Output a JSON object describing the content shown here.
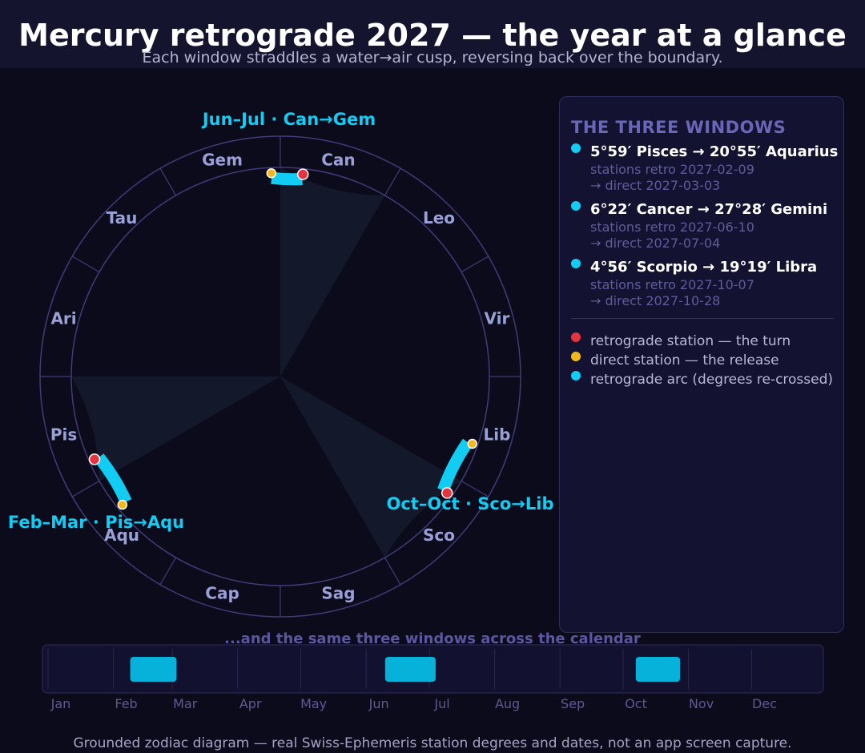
{
  "header": {
    "title": "Mercury retrograde 2027 — the year at a glance",
    "subtitle": "Each window straddles a water→air cusp, reversing back over the boundary."
  },
  "wheel": {
    "signs": [
      "Ari",
      "Tau",
      "Gem",
      "Can",
      "Leo",
      "Vir",
      "Lib",
      "Sco",
      "Sag",
      "Cap",
      "Aqu",
      "Pis"
    ],
    "arc_labels": [
      "Feb–Mar · Pis→Aqu",
      "Jun–Jul · Can→Gem",
      "Oct–Oct · Sco→Lib"
    ],
    "water_signs": [
      "Can",
      "Sco",
      "Pis"
    ]
  },
  "panel": {
    "heading": "THE THREE WINDOWS",
    "windows": [
      {
        "range": "5°59′ Pisces  →  20°55′ Aquarius",
        "retro": "stations retro 2027-02-09",
        "direct": "→ direct 2027-03-03"
      },
      {
        "range": "6°22′ Cancer  →  27°28′ Gemini",
        "retro": "stations retro 2027-06-10",
        "direct": "→ direct 2027-07-04"
      },
      {
        "range": "4°56′ Scorpio  →  19°19′ Libra",
        "retro": "stations retro 2027-10-07",
        "direct": "→ direct 2027-10-28"
      }
    ],
    "legend": [
      {
        "label": "retrograde station — the turn",
        "color": "#e5343f"
      },
      {
        "label": "direct station — the release",
        "color": "#f4b81c"
      },
      {
        "label": "retrograde arc (degrees re-crossed)",
        "color": "#12cdf3"
      }
    ]
  },
  "calendar": {
    "heading": "...and the same three windows across the calendar",
    "months": [
      "Jan",
      "Feb",
      "Mar",
      "Apr",
      "May",
      "Jun",
      "Jul",
      "Aug",
      "Sep",
      "Oct",
      "Nov",
      "Dec"
    ],
    "windows": [
      {
        "start": "2027-02-09",
        "end": "2027-03-03"
      },
      {
        "start": "2027-06-10",
        "end": "2027-07-04"
      },
      {
        "start": "2027-10-07",
        "end": "2027-10-28"
      }
    ]
  },
  "retrograde_arcs": [
    {
      "retro_station_lon": 335.98,
      "direct_station_lon": 320.92
    },
    {
      "retro_station_lon": 96.37,
      "direct_station_lon": 87.47
    },
    {
      "retro_station_lon": 214.93,
      "direct_station_lon": 199.32
    }
  ],
  "colors": {
    "arc": "#12cdf3",
    "retro_station": "#e5343f",
    "direct_station": "#f4b81c",
    "sign_label": "#9aa0d6",
    "water_sector": "#13192b",
    "ring": "#3f3c78"
  },
  "footer": "Grounded zodiac diagram — real Swiss-Ephemeris station degrees and dates, not an app screen capture."
}
